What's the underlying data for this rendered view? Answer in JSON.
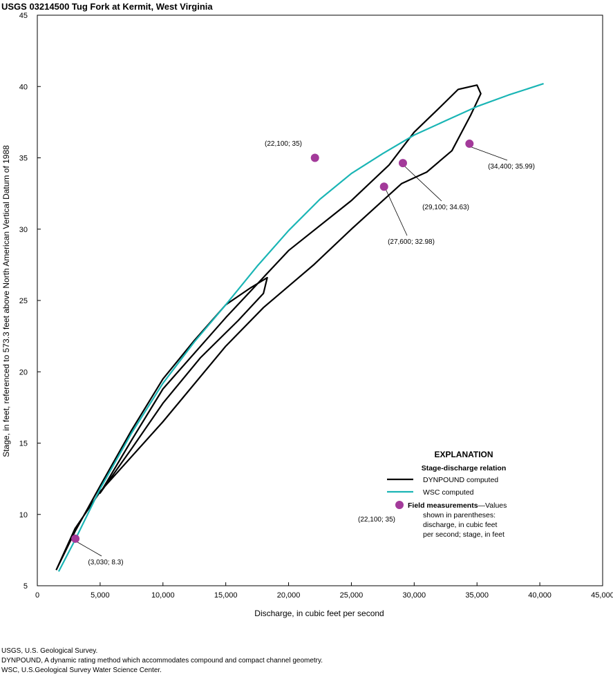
{
  "chart_data": {
    "type": "line",
    "title": "USGS 03214500 Tug Fork at Kermit, West Virginia",
    "x_label": "Discharge, in cubic feet per second",
    "y_label": "Stage, in feet, referenced to 573.3 feet above North American Vertical Datum of 1988",
    "xlim": [
      0,
      45000
    ],
    "ylim": [
      5,
      45
    ],
    "xticks": [
      0,
      {
        "value": 5000,
        "label": "5,000"
      },
      {
        "value": 10000,
        "label": "10,000"
      },
      {
        "value": 15000,
        "label": "15,000"
      },
      {
        "value": 20000,
        "label": "20,000"
      },
      {
        "value": 25000,
        "label": "25,000"
      },
      {
        "value": 30000,
        "label": "30,000"
      },
      {
        "value": 35000,
        "label": "35,000"
      },
      {
        "value": 40000,
        "label": "40,000"
      },
      {
        "value": 45000,
        "label": "45,000"
      }
    ],
    "yticks": [
      5,
      10,
      15,
      20,
      25,
      30,
      35,
      40,
      45
    ],
    "series": [
      {
        "name": "DYNPOUND computed",
        "color": "#000000",
        "type": "line",
        "x": [
          1500,
          3000,
          5000,
          7500,
          10000,
          12500,
          15000,
          17000,
          18300,
          18000,
          16000,
          13000,
          10000,
          7500,
          5000,
          7500,
          10000,
          15000,
          20000,
          25000,
          28000,
          30000,
          32000,
          33500,
          35000,
          35300,
          34500,
          33000,
          31000,
          29000,
          27500,
          25000,
          22000,
          20000,
          18000,
          15000,
          10000,
          5000,
          3000,
          1500
        ],
        "values": [
          6.1,
          8.8,
          12.0,
          15.9,
          19.5,
          22.2,
          24.7,
          25.9,
          26.6,
          25.5,
          23.6,
          21.0,
          17.8,
          14.6,
          11.5,
          15.2,
          18.8,
          23.8,
          28.5,
          32.0,
          34.5,
          36.8,
          38.5,
          39.8,
          40.1,
          39.5,
          38.0,
          35.5,
          34.0,
          33.2,
          32.0,
          30.0,
          27.5,
          26.0,
          24.5,
          21.8,
          16.5,
          11.6,
          9.0,
          6.1
        ]
      },
      {
        "name": "WSC computed",
        "color": "#1ab5b5",
        "type": "line",
        "x": [
          1700,
          3000,
          5000,
          7500,
          10000,
          12500,
          15000,
          17500,
          20000,
          22500,
          25000,
          27500,
          30000,
          32500,
          35000,
          37500,
          40300
        ],
        "values": [
          6.0,
          8.2,
          11.8,
          15.7,
          19.2,
          22.1,
          24.7,
          27.4,
          29.9,
          32.1,
          33.9,
          35.3,
          36.6,
          37.6,
          38.6,
          39.4,
          40.2
        ]
      },
      {
        "name": "Field measurements",
        "color": "#a33a9a",
        "type": "scatter",
        "x": [
          3030,
          22100,
          27600,
          29100,
          34400
        ],
        "values": [
          8.3,
          35,
          32.98,
          34.63,
          35.99
        ],
        "value_labels": [
          "(3,030; 8.3)",
          "(22,100; 35)",
          "(27,600; 32.98)",
          "(29,100; 34.63)",
          "(34,400; 35.99)"
        ]
      }
    ],
    "legend_title": "EXPLANATION",
    "legend_subtitle": "Stage-discharge relation",
    "legend_note": [
      "—Values",
      "shown in parentheses:",
      "discharge, in cubic feet",
      "per second; stage, in feet"
    ],
    "legend_example": "(22,100; 35)",
    "footnotes": [
      "USGS, U.S. Geological Survey.",
      "DYNPOUND, A dynamic rating method which accommodates compound and compact channel geometry.",
      "WSC, U.S.Geological Survey Water Science Center."
    ]
  }
}
